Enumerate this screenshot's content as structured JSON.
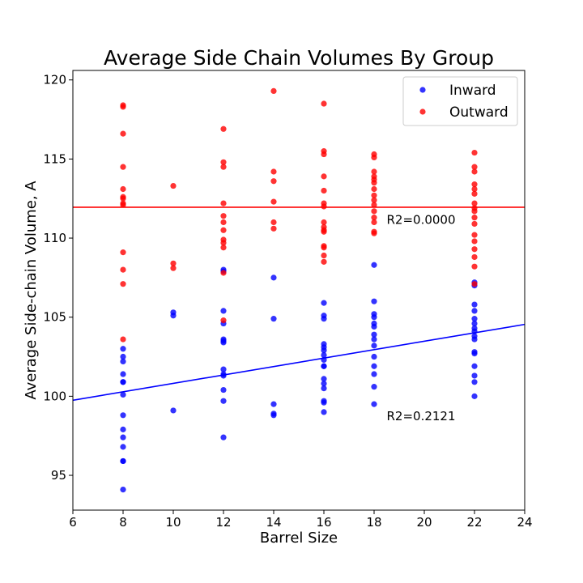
{
  "chart_data": {
    "type": "scatter",
    "title": "Average Side Chain Volumes By Group",
    "xlabel": "Barrel Size",
    "ylabel": "Average Side-chain Volume, A",
    "xlim": [
      6,
      24
    ],
    "ylim": [
      92.8,
      120.6
    ],
    "xticks": [
      6,
      8,
      10,
      12,
      14,
      16,
      18,
      20,
      22,
      24
    ],
    "yticks": [
      95,
      100,
      105,
      110,
      115,
      120
    ],
    "grid": false,
    "legend_position": "upper right",
    "series": [
      {
        "name": "Inward",
        "color": "#0000ff",
        "points": [
          [
            8,
            103.0
          ],
          [
            8,
            102.5
          ],
          [
            8,
            102.2
          ],
          [
            8,
            101.4
          ],
          [
            8,
            100.9
          ],
          [
            8,
            100.9
          ],
          [
            8,
            100.1
          ],
          [
            8,
            98.8
          ],
          [
            8,
            97.9
          ],
          [
            8,
            97.4
          ],
          [
            8,
            96.8
          ],
          [
            8,
            95.9
          ],
          [
            8,
            95.9
          ],
          [
            8,
            94.1
          ],
          [
            10,
            105.3
          ],
          [
            10,
            105.1
          ],
          [
            10,
            99.1
          ],
          [
            12,
            108.0
          ],
          [
            12,
            107.9
          ],
          [
            12,
            105.4
          ],
          [
            12,
            104.6
          ],
          [
            12,
            103.6
          ],
          [
            12,
            103.4
          ],
          [
            12,
            103.5
          ],
          [
            12,
            101.7
          ],
          [
            12,
            101.4
          ],
          [
            12,
            101.3
          ],
          [
            12,
            100.4
          ],
          [
            12,
            99.7
          ],
          [
            12,
            97.4
          ],
          [
            14,
            107.5
          ],
          [
            14,
            104.9
          ],
          [
            14,
            99.5
          ],
          [
            14,
            98.9
          ],
          [
            14,
            98.8
          ],
          [
            16,
            105.9
          ],
          [
            16,
            105.1
          ],
          [
            16,
            104.9
          ],
          [
            16,
            103.3
          ],
          [
            16,
            103.1
          ],
          [
            16,
            102.9
          ],
          [
            16,
            102.6
          ],
          [
            16,
            102.3
          ],
          [
            16,
            101.9
          ],
          [
            16,
            101.9
          ],
          [
            16,
            101.1
          ],
          [
            16,
            100.8
          ],
          [
            16,
            100.5
          ],
          [
            16,
            99.7
          ],
          [
            16,
            99.6
          ],
          [
            16,
            99.0
          ],
          [
            18,
            108.3
          ],
          [
            18,
            106.0
          ],
          [
            18,
            105.2
          ],
          [
            18,
            105.0
          ],
          [
            18,
            104.6
          ],
          [
            18,
            104.4
          ],
          [
            18,
            103.9
          ],
          [
            18,
            103.6
          ],
          [
            18,
            103.2
          ],
          [
            18,
            102.5
          ],
          [
            18,
            101.9
          ],
          [
            18,
            101.4
          ],
          [
            18,
            100.6
          ],
          [
            18,
            99.5
          ],
          [
            22,
            107.2
          ],
          [
            22,
            107.0
          ],
          [
            22,
            105.8
          ],
          [
            22,
            105.4
          ],
          [
            22,
            104.9
          ],
          [
            22,
            104.6
          ],
          [
            22,
            104.3
          ],
          [
            22,
            104.1
          ],
          [
            22,
            103.8
          ],
          [
            22,
            103.6
          ],
          [
            22,
            102.8
          ],
          [
            22,
            102.7
          ],
          [
            22,
            101.9
          ],
          [
            22,
            101.3
          ],
          [
            22,
            100.9
          ],
          [
            22,
            100.0
          ]
        ],
        "fit": {
          "slope": 0.2664,
          "intercept": 98.15,
          "r2_label": "R2=0.2121"
        }
      },
      {
        "name": "Outward",
        "color": "#ff0000",
        "points": [
          [
            8,
            118.4
          ],
          [
            8,
            118.3
          ],
          [
            8,
            116.6
          ],
          [
            8,
            114.5
          ],
          [
            8,
            113.1
          ],
          [
            8,
            112.6
          ],
          [
            8,
            112.5
          ],
          [
            8,
            112.2
          ],
          [
            8,
            112.1
          ],
          [
            8,
            109.1
          ],
          [
            8,
            108.0
          ],
          [
            8,
            107.1
          ],
          [
            8,
            103.6
          ],
          [
            10,
            113.3
          ],
          [
            10,
            108.4
          ],
          [
            10,
            108.1
          ],
          [
            12,
            116.9
          ],
          [
            12,
            114.8
          ],
          [
            12,
            114.5
          ],
          [
            12,
            112.2
          ],
          [
            12,
            111.4
          ],
          [
            12,
            111.0
          ],
          [
            12,
            110.5
          ],
          [
            12,
            109.9
          ],
          [
            12,
            109.7
          ],
          [
            12,
            109.4
          ],
          [
            12,
            107.8
          ],
          [
            12,
            104.8
          ],
          [
            14,
            119.3
          ],
          [
            14,
            114.2
          ],
          [
            14,
            113.6
          ],
          [
            14,
            112.3
          ],
          [
            14,
            111.0
          ],
          [
            14,
            110.6
          ],
          [
            16,
            118.5
          ],
          [
            16,
            115.5
          ],
          [
            16,
            115.3
          ],
          [
            16,
            113.9
          ],
          [
            16,
            113.0
          ],
          [
            16,
            112.2
          ],
          [
            16,
            112.0
          ],
          [
            16,
            111.0
          ],
          [
            16,
            110.7
          ],
          [
            16,
            110.5
          ],
          [
            16,
            110.4
          ],
          [
            16,
            109.5
          ],
          [
            16,
            109.4
          ],
          [
            16,
            108.9
          ],
          [
            16,
            108.5
          ],
          [
            18,
            115.3
          ],
          [
            18,
            115.1
          ],
          [
            18,
            114.2
          ],
          [
            18,
            113.9
          ],
          [
            18,
            113.7
          ],
          [
            18,
            113.5
          ],
          [
            18,
            113.1
          ],
          [
            18,
            112.7
          ],
          [
            18,
            112.4
          ],
          [
            18,
            112.1
          ],
          [
            18,
            111.7
          ],
          [
            18,
            111.3
          ],
          [
            18,
            111.0
          ],
          [
            18,
            110.4
          ],
          [
            18,
            110.3
          ],
          [
            22,
            115.4
          ],
          [
            22,
            114.5
          ],
          [
            22,
            114.2
          ],
          [
            22,
            113.4
          ],
          [
            22,
            113.1
          ],
          [
            22,
            112.8
          ],
          [
            22,
            112.2
          ],
          [
            22,
            111.9
          ],
          [
            22,
            111.7
          ],
          [
            22,
            111.3
          ],
          [
            22,
            110.9
          ],
          [
            22,
            110.2
          ],
          [
            22,
            109.8
          ],
          [
            22,
            109.3
          ],
          [
            22,
            108.8
          ],
          [
            22,
            108.2
          ],
          [
            22,
            107.1
          ]
        ],
        "fit": {
          "slope": 0.0,
          "intercept": 111.95,
          "r2_label": "R2=0.0000"
        }
      }
    ],
    "annotations": [
      {
        "text": "R2=0.0000",
        "x": 18.5,
        "y": 111.2
      },
      {
        "text": "R2=0.2121",
        "x": 18.5,
        "y": 98.8
      }
    ]
  }
}
